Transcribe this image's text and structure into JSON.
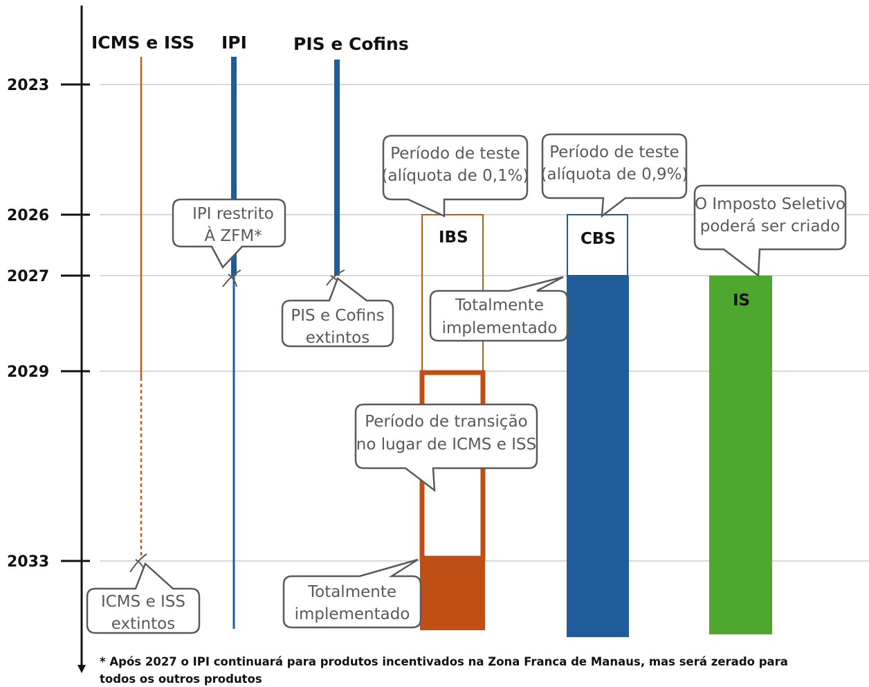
{
  "colors": {
    "orange": "#c55a11",
    "orange_dark": "#c04f15",
    "blue": "#1f5c99",
    "green": "#4ea72e",
    "grid": "#d9d9d9",
    "callout_border": "#595959",
    "callout_text": "#595959"
  },
  "timeline": {
    "years": [
      "2023",
      "2026",
      "2027",
      "2029",
      "2033"
    ]
  },
  "columns": {
    "icms_iss": "ICMS e ISS",
    "ipi": "IPI",
    "pis_cofins": "PIS e Cofins"
  },
  "taxes": {
    "ibs": "IBS",
    "cbs": "CBS",
    "is": "IS"
  },
  "callouts": {
    "ibs_test": [
      "Período de teste",
      "(alíquota de 0,1%)"
    ],
    "cbs_test": [
      "Período de teste",
      "(alíquota de 0,9%)"
    ],
    "is_created": [
      "O Imposto Seletivo",
      "poderá ser criado"
    ],
    "ipi_restricted": [
      "IPI restrito",
      "À ZFM*"
    ],
    "pis_extinct": [
      "PIS e Cofins",
      "extintos"
    ],
    "cbs_full": [
      "Totalmente",
      "implementado"
    ],
    "ibs_transition": [
      "Período de transição",
      "no lugar de ICMS e ISS"
    ],
    "icms_extinct": [
      "ICMS e ISS",
      "extintos"
    ],
    "ibs_full": [
      "Totalmente",
      "implementado"
    ]
  },
  "footnote": [
    "* Após 2027 o IPI continuará para produtos incentivados na Zona Franca de Manaus, mas será zerado para",
    "todos os outros produtos"
  ]
}
